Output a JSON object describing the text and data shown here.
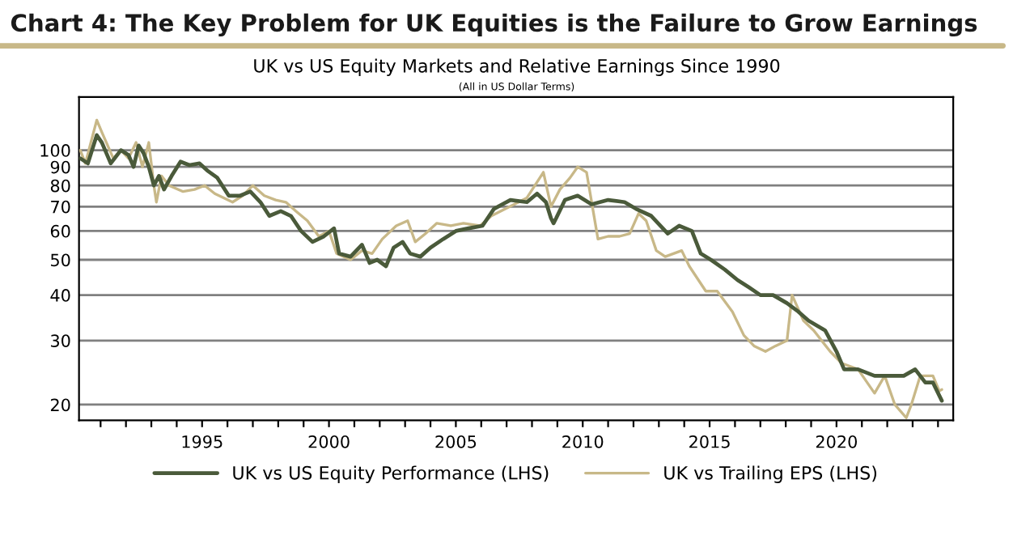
{
  "chart_data": {
    "type": "line",
    "title": "Chart 4: The Key Problem for UK Equities is the Failure to Grow Earnings",
    "subtitle": "UK vs US Equity Markets and Relative Earnings Since 1990",
    "annotations": [
      "(All in US Dollar Terms)"
    ],
    "log": "y",
    "grid": "y",
    "legend": "bottom",
    "xlim": [
      1990.15,
      2024.6
    ],
    "ylim": [
      18.1,
      140
    ],
    "xticks": [
      {
        "value": 1991,
        "label": null
      },
      {
        "value": 1992,
        "label": null
      },
      {
        "value": 1993,
        "label": null
      },
      {
        "value": 1994,
        "label": null
      },
      1995,
      {
        "value": 1996,
        "label": null
      },
      {
        "value": 1997,
        "label": null
      },
      {
        "value": 1998,
        "label": null
      },
      {
        "value": 1999,
        "label": null
      },
      2000,
      {
        "value": 2001,
        "label": null
      },
      {
        "value": 2002,
        "label": null
      },
      {
        "value": 2003,
        "label": null
      },
      {
        "value": 2004,
        "label": null
      },
      2005,
      {
        "value": 2006,
        "label": null
      },
      {
        "value": 2007,
        "label": null
      },
      {
        "value": 2008,
        "label": null
      },
      {
        "value": 2009,
        "label": null
      },
      2010,
      {
        "value": 2011,
        "label": null
      },
      {
        "value": 2012,
        "label": null
      },
      {
        "value": 2013,
        "label": null
      },
      {
        "value": 2014,
        "label": null
      },
      2015,
      {
        "value": 2016,
        "label": null
      },
      {
        "value": 2017,
        "label": null
      },
      {
        "value": 2018,
        "label": null
      },
      {
        "value": 2019,
        "label": null
      },
      2020,
      {
        "value": 2021,
        "label": null
      },
      {
        "value": 2022,
        "label": null
      },
      {
        "value": 2023,
        "label": null
      },
      {
        "value": 2024,
        "label": null
      }
    ],
    "yticks": [
      20,
      30,
      40,
      50,
      60,
      70,
      80,
      90,
      100
    ],
    "series": [
      {
        "name": "UK vs US Equity Performance (LHS)",
        "color": "#4a5a3a",
        "x": [
          1990.2,
          1990.5,
          1990.85,
          1991.05,
          1991.4,
          1991.8,
          1992.1,
          1992.3,
          1992.5,
          1992.7,
          1992.9,
          1993.1,
          1993.3,
          1993.5,
          1993.8,
          1994.15,
          1994.5,
          1994.9,
          1995.2,
          1995.6,
          1996.05,
          1996.5,
          1996.9,
          1997.3,
          1997.65,
          1998.1,
          1998.5,
          1998.9,
          1999.35,
          1999.8,
          2000.2,
          2000.4,
          2000.85,
          2001.3,
          2001.6,
          2001.9,
          2002.25,
          2002.55,
          2002.9,
          2003.2,
          2003.6,
          2004.0,
          2004.5,
          2005.0,
          2005.5,
          2006.05,
          2006.5,
          2007.15,
          2007.8,
          2008.2,
          2008.55,
          2008.75,
          2008.85,
          2008.95,
          2009.3,
          2009.8,
          2010.35,
          2011.0,
          2011.65,
          2012.1,
          2012.7,
          2013.35,
          2013.8,
          2014.3,
          2014.65,
          2015.05,
          2015.6,
          2016.1,
          2016.55,
          2017.0,
          2017.5,
          2018.05,
          2018.5,
          2018.9,
          2019.55,
          2020.0,
          2020.3,
          2020.85,
          2021.5,
          2022.1,
          2022.65,
          2023.1,
          2023.5,
          2023.8,
          2024.15
        ],
        "values": [
          95,
          92,
          110,
          105,
          92,
          100,
          97,
          90,
          103,
          98,
          90,
          80,
          85,
          78,
          85,
          93,
          91,
          92,
          88,
          84,
          75,
          75,
          77,
          72,
          66,
          68,
          66,
          60,
          56,
          58,
          61,
          52,
          51,
          55,
          49,
          50,
          48,
          54,
          56,
          52,
          51,
          54,
          57,
          60,
          61,
          62,
          69,
          73,
          72,
          76,
          72,
          65,
          63,
          65,
          73,
          75,
          71,
          73,
          72,
          69,
          66,
          59,
          62,
          60,
          52,
          50,
          47,
          44,
          42,
          40,
          40,
          38,
          36,
          34,
          32,
          28,
          25,
          25,
          24,
          24,
          24,
          25,
          23,
          23,
          20.5
        ]
      },
      {
        "name": "UK vs Trailing EPS (LHS)",
        "color": "#c8b888",
        "x": [
          1990.2,
          1990.4,
          1990.85,
          1991.05,
          1991.5,
          1991.8,
          1992.1,
          1992.4,
          1992.65,
          1992.9,
          1993.1,
          1993.2,
          1993.4,
          1993.7,
          1994.25,
          1994.7,
          1995.1,
          1995.5,
          1996.2,
          1996.6,
          1997.0,
          1997.45,
          1997.9,
          1998.3,
          1998.7,
          1999.15,
          1999.6,
          2000.0,
          2000.3,
          2000.85,
          2001.3,
          2001.7,
          2002.1,
          2002.65,
          2003.1,
          2003.4,
          2003.8,
          2004.25,
          2004.8,
          2005.3,
          2005.95,
          2006.4,
          2006.95,
          2007.8,
          2008.45,
          2008.75,
          2009.1,
          2009.5,
          2009.8,
          2010.15,
          2010.6,
          2011.0,
          2011.45,
          2011.85,
          2012.2,
          2012.5,
          2012.9,
          2013.25,
          2013.9,
          2014.2,
          2014.85,
          2015.3,
          2015.9,
          2016.35,
          2016.75,
          2017.2,
          2017.6,
          2018.05,
          2018.25,
          2018.7,
          2019.1,
          2019.75,
          2020.2,
          2020.85,
          2021.5,
          2021.9,
          2022.3,
          2022.75,
          2022.95,
          2023.3,
          2023.8,
          2024.05,
          2024.15
        ],
        "values": [
          100,
          92,
          121,
          112,
          95,
          100,
          95,
          105,
          90,
          105,
          80,
          72,
          85,
          80,
          77,
          78,
          80,
          76,
          72,
          75,
          80,
          75,
          73,
          72,
          68,
          64,
          58,
          60,
          52,
          50,
          53,
          52,
          57,
          62,
          64,
          56,
          59,
          63,
          62,
          63,
          62,
          66,
          69,
          74,
          87,
          70,
          78,
          84,
          90,
          87,
          57,
          58,
          58,
          59,
          67,
          64,
          53,
          51,
          53,
          48,
          41,
          41,
          36,
          31,
          29,
          28,
          29,
          30,
          40,
          34,
          32,
          28,
          26,
          25,
          21.5,
          24,
          20,
          18.4,
          20,
          24,
          24,
          21.8,
          22
        ]
      }
    ]
  }
}
